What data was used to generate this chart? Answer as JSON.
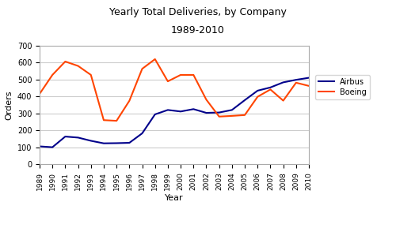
{
  "title": "Yearly Total Deliveries, by Company",
  "subtitle": "1989-2010",
  "xlabel": "Year",
  "ylabel": "Orders",
  "years": [
    1989,
    1990,
    1991,
    1992,
    1993,
    1994,
    1995,
    1996,
    1997,
    1998,
    1999,
    2000,
    2001,
    2002,
    2003,
    2004,
    2005,
    2006,
    2007,
    2008,
    2009,
    2010
  ],
  "airbus": [
    105,
    100,
    163,
    157,
    138,
    123,
    124,
    126,
    182,
    294,
    320,
    311,
    325,
    303,
    305,
    320,
    378,
    434,
    453,
    483,
    498,
    510
  ],
  "boeing": [
    415,
    527,
    606,
    580,
    527,
    260,
    256,
    374,
    563,
    620,
    489,
    527,
    527,
    381,
    281,
    285,
    290,
    398,
    441,
    375,
    481,
    462
  ],
  "airbus_color": "#00008B",
  "boeing_color": "#FF4500",
  "ylim": [
    0,
    700
  ],
  "yticks": [
    0,
    100,
    200,
    300,
    400,
    500,
    600,
    700
  ],
  "bg_color": "#ffffff",
  "plot_bg_color": "#ffffff",
  "grid_color": "#cccccc",
  "legend_labels": [
    "Airbus",
    "Boeing"
  ]
}
